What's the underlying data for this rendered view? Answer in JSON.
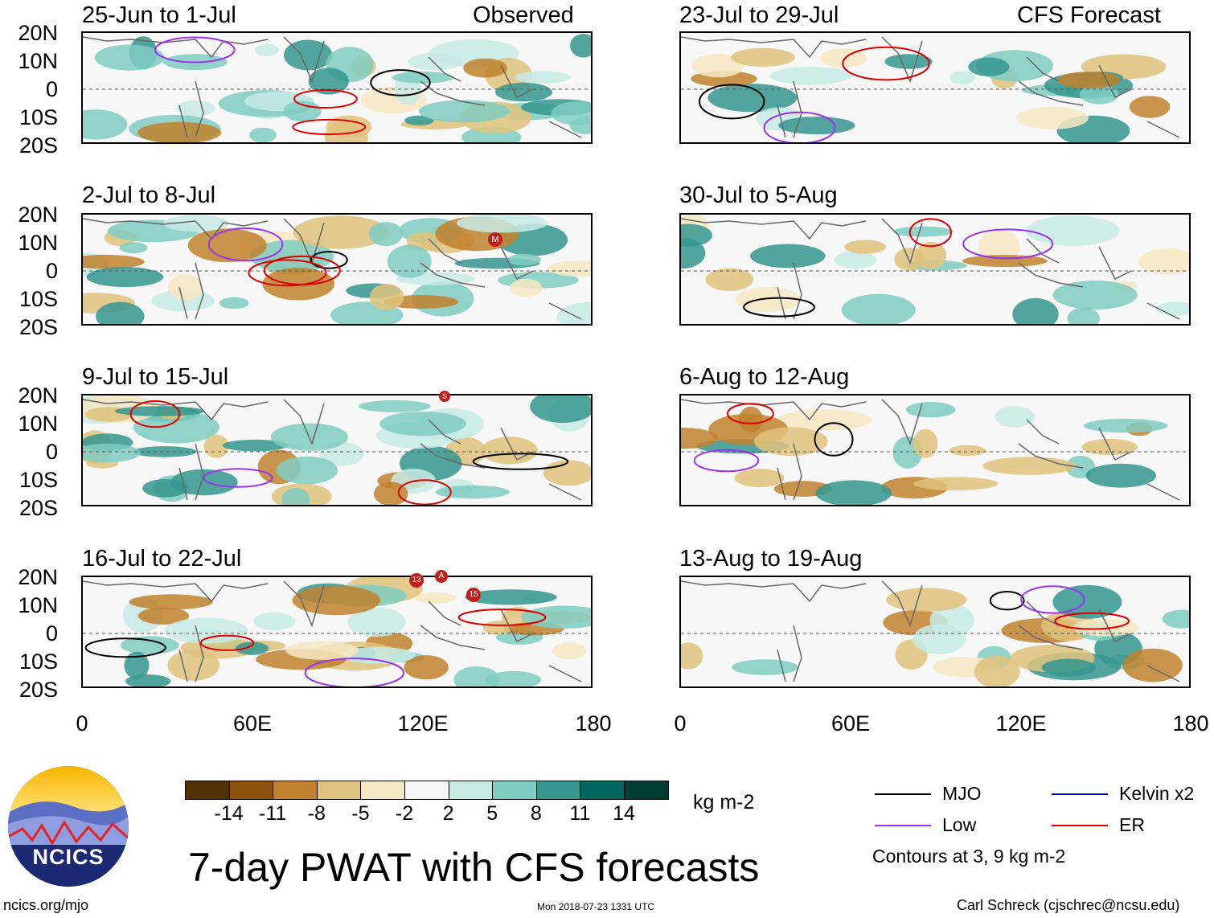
{
  "main_title": "7-day PWAT with CFS forecasts",
  "left_column": {
    "header": "Observed",
    "panels": [
      {
        "title": "25-Jun to 1-Jul"
      },
      {
        "title": "2-Jul to 8-Jul"
      },
      {
        "title": "9-Jul to 15-Jul"
      },
      {
        "title": "16-Jul to 22-Jul"
      }
    ]
  },
  "right_column": {
    "header": "CFS Forecast",
    "panels": [
      {
        "title": "23-Jul to 29-Jul"
      },
      {
        "title": "30-Jul to 5-Aug"
      },
      {
        "title": "6-Aug to 12-Aug"
      },
      {
        "title": "13-Aug to 19-Aug"
      }
    ]
  },
  "lat_labels": [
    "20N",
    "10N",
    "0",
    "10S",
    "20S"
  ],
  "lon_labels": [
    "0",
    "60E",
    "120E",
    "180"
  ],
  "colorbar": {
    "unit": "kg m-2",
    "labels": [
      "-14",
      "-11",
      "-8",
      "-5",
      "-2",
      "2",
      "5",
      "8",
      "11",
      "14"
    ],
    "colors": [
      "#543005",
      "#8c510a",
      "#bf812d",
      "#dfc27d",
      "#f6e8c3",
      "#f5f5f5",
      "#c7eae5",
      "#80cdc1",
      "#35978f",
      "#01665e",
      "#003c30"
    ]
  },
  "legend": {
    "items": [
      {
        "label": "MJO",
        "color": "#000000"
      },
      {
        "label": "Kelvin x2",
        "color": "#0000dd"
      },
      {
        "label": "Low",
        "color": "#9933ee"
      },
      {
        "label": "ER",
        "color": "#dd0000"
      }
    ],
    "note": "Contours at 3, 9 kg m-2"
  },
  "logo_text": "NCICS",
  "footer": {
    "left": "ncics.org/mjo",
    "center": "Mon 2018-07-23 1331 UTC",
    "right": "Carl Schreck (cjschrec@ncsu.edu)"
  },
  "storm_markers": [
    {
      "label": "M"
    },
    {
      "label": "S"
    },
    {
      "label": "13"
    },
    {
      "label": "A"
    },
    {
      "label": "15"
    }
  ]
}
